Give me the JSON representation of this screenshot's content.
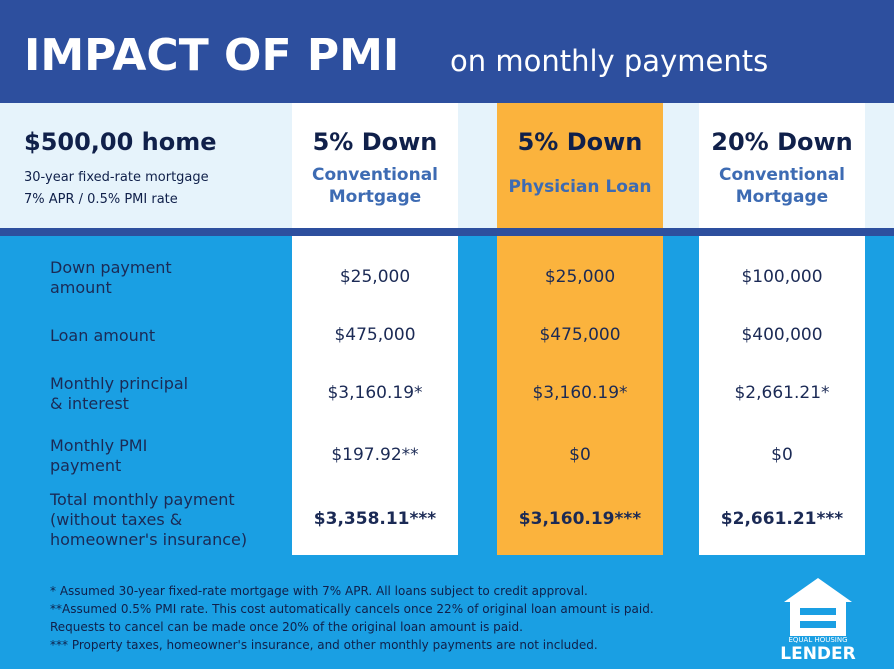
{
  "header": {
    "title": "IMPACT OF PMI",
    "subtitle": "on monthly payments"
  },
  "intro": {
    "home": "$500,00 home",
    "lines": [
      "30-year fixed-rate mortgage",
      "7% APR / 0.5% PMI rate"
    ]
  },
  "columns": [
    {
      "down": "5% Down",
      "type": [
        "Conventional",
        "Mortgage"
      ]
    },
    {
      "down": "5% Down",
      "type": [
        "Physician Loan"
      ]
    },
    {
      "down": "20% Down",
      "type": [
        "Conventional",
        "Mortgage"
      ]
    }
  ],
  "rows": [
    {
      "label": [
        "Down payment",
        "amount"
      ],
      "values": [
        "$25,000",
        "$25,000",
        "$100,000"
      ]
    },
    {
      "label": [
        "Loan amount"
      ],
      "values": [
        "$475,000",
        "$475,000",
        "$400,000"
      ]
    },
    {
      "label": [
        "Monthly principal",
        "& interest"
      ],
      "values": [
        "$3,160.19*",
        "$3,160.19*",
        "$2,661.21*"
      ]
    },
    {
      "label": [
        "Monthly PMI",
        "payment"
      ],
      "values": [
        "$197.92**",
        "$0",
        "$0"
      ]
    },
    {
      "label": [
        "Total monthly payment",
        "(without taxes &",
        "homeowner's insurance)"
      ],
      "values": [
        "$3,358.11***",
        "$3,160.19***",
        "$2,661.21***"
      ]
    }
  ],
  "footnotes": [
    "* Assumed 30-year fixed-rate mortgage with 7% APR. All loans subject to credit approval.",
    "**Assumed 0.5% PMI rate. This cost automatically cancels once 22% of original loan amount is paid.",
    "Requests to cancel can be made once 20% of the original loan amount is paid.",
    "*** Property taxes, homeowner's insurance, and other monthly payments are not included."
  ],
  "logo": {
    "small": "EQUAL HOUSING",
    "big": "LENDER"
  }
}
